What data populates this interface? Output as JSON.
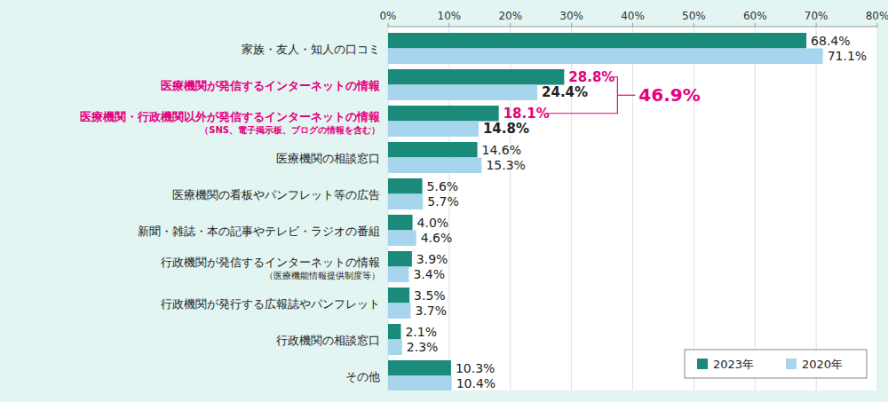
{
  "chart_data": {
    "type": "bar",
    "orientation": "horizontal",
    "categories": [
      "家族・友人・知人の口コミ",
      "医療機関が発信するインターネットの情報",
      "医療機関・行政機関以外が発信するインターネットの情報",
      "医療機関の相談窓口",
      "医療機関の看板やパンフレット等の広告",
      "新聞・雑誌・本の記事やテレビ・ラジオの番組",
      "行政機関が発信するインターネットの情報",
      "行政機関が発行する広報誌やパンフレット",
      "行政機関の相談窓口",
      "その他"
    ],
    "category_notes": [
      null,
      null,
      "（SNS、電子掲示板、ブログの情報を含む）",
      null,
      null,
      null,
      "（医療機能情報提供制度等）",
      null,
      null,
      null
    ],
    "series": [
      {
        "name": "2023年",
        "color": "#1a8a7b",
        "values": [
          68.4,
          28.8,
          18.1,
          14.6,
          5.6,
          4.0,
          3.9,
          3.5,
          2.1,
          10.3
        ],
        "value_labels": [
          "68.4%",
          "28.8%",
          "18.1%",
          "14.6%",
          "5.6%",
          "4.0%",
          "3.9%",
          "3.5%",
          "2.1%",
          "10.3%"
        ]
      },
      {
        "name": "2020年",
        "color": "#a8d5ee",
        "values": [
          71.1,
          24.4,
          14.8,
          15.3,
          5.7,
          4.6,
          3.4,
          3.7,
          2.3,
          10.4
        ],
        "value_labels": [
          "71.1%",
          "24.4%",
          "14.8%",
          "15.3%",
          "5.7%",
          "4.6%",
          "3.4%",
          "3.7%",
          "2.3%",
          "10.4%"
        ]
      }
    ],
    "xlim": [
      0,
      80
    ],
    "xticks": [
      {
        "value": 0,
        "label": "0%"
      },
      {
        "value": 10,
        "label": "10%"
      },
      {
        "value": 20,
        "label": "20%"
      },
      {
        "value": 30,
        "label": "30%"
      },
      {
        "value": 40,
        "label": "40%"
      },
      {
        "value": 50,
        "label": "50%"
      },
      {
        "value": 60,
        "label": "60%"
      },
      {
        "value": 70,
        "label": "70%"
      },
      {
        "value": 80,
        "label": "80%"
      }
    ],
    "grid": true,
    "data_labels": true,
    "legend": "lower right",
    "annotations": [
      {
        "text": "46.9%",
        "value": 46.9,
        "categories": [
          1,
          2
        ],
        "color": "#e4007f"
      }
    ]
  }
}
